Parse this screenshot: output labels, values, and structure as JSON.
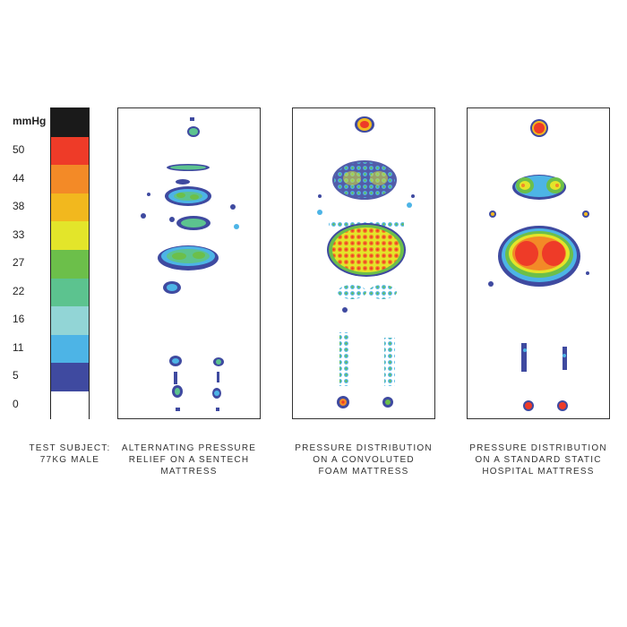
{
  "legend": {
    "unit": "mmHg",
    "ticks": [
      "50",
      "44",
      "38",
      "33",
      "27",
      "22",
      "16",
      "11",
      "5",
      "0"
    ],
    "bands": [
      "#1a1a1a",
      "#ee3b28",
      "#f38a27",
      "#f2b81e",
      "#e3e52a",
      "#6cbf4a",
      "#5cc38f",
      "#92d5d6",
      "#4db4e6",
      "#3f4aa0",
      "#ffffff"
    ]
  },
  "colors": {
    "dark_blue": "#3f4aa0",
    "light_blue": "#4db4e6",
    "cyan": "#92d5d6",
    "mint": "#5cc38f",
    "green": "#6cbf4a",
    "yellow": "#e3e52a",
    "gold": "#f2b81e",
    "orange": "#f38a27",
    "red": "#ee3b28"
  },
  "captions": {
    "subject": [
      "TEST SUBJECT:",
      "77KG MALE"
    ],
    "panel1": [
      "ALTERNATING PRESSURE",
      "RELIEF ON A SENTECH",
      "MATTRESS"
    ],
    "panel2": [
      "PRESSURE DISTRIBUTION",
      "ON A CONVOLUTED",
      "FOAM MATTRESS"
    ],
    "panel3": [
      "PRESSURE DISTRIBUTION",
      "ON A STANDARD STATIC",
      "HOSPITAL MATTRESS"
    ]
  }
}
